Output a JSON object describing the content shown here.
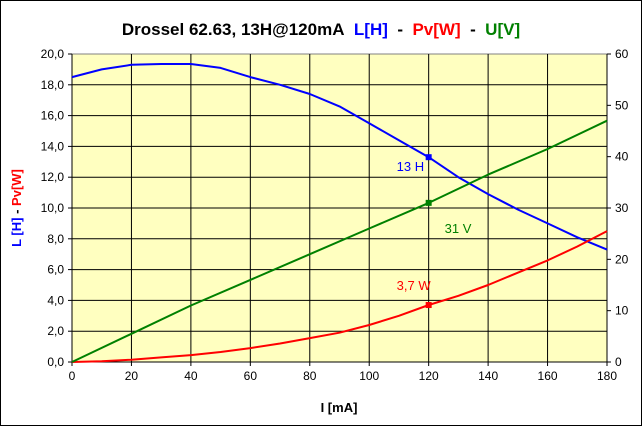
{
  "chart_data": {
    "type": "line",
    "title_parts": [
      {
        "text": "Drossel 62.63, 13H@120mA",
        "color": "#000000"
      },
      {
        "text": "L[H]",
        "color": "#0000ff"
      },
      {
        "text": "-",
        "color": "#000000"
      },
      {
        "text": "Pv[W]",
        "color": "#ff0000"
      },
      {
        "text": "-",
        "color": "#000000"
      },
      {
        "text": "U[V]",
        "color": "#008000"
      }
    ],
    "xlabel": "I [mA]",
    "ylabel_left_parts": [
      {
        "text": "L [H]",
        "color": "#0000ff"
      },
      {
        "text": " - ",
        "color": "#000000"
      },
      {
        "text": "Pv[W]",
        "color": "#ff0000"
      }
    ],
    "xlim": [
      0,
      180
    ],
    "ylim_left": [
      0,
      20
    ],
    "ylim_right": [
      0,
      60
    ],
    "x_ticks": [
      "0",
      "20",
      "40",
      "60",
      "80",
      "100",
      "120",
      "140",
      "160",
      "180"
    ],
    "y_left_ticks": [
      "0,0",
      "2,0",
      "4,0",
      "6,0",
      "8,0",
      "10,0",
      "12,0",
      "14,0",
      "16,0",
      "18,0",
      "20,0"
    ],
    "y_right_ticks": [
      "0",
      "10",
      "20",
      "30",
      "40",
      "50",
      "60"
    ],
    "grid": true,
    "plot_background": "#ffffc0",
    "series": [
      {
        "axis": "left",
        "color": "#0000ff",
        "x": [
          0,
          10,
          20,
          30,
          40,
          50,
          60,
          70,
          80,
          90,
          100,
          110,
          120,
          130,
          140,
          150,
          160,
          170,
          180
        ],
        "y": [
          18.5,
          19.0,
          19.3,
          19.35,
          19.35,
          19.1,
          18.5,
          18.0,
          17.4,
          16.6,
          15.5,
          14.4,
          13.3,
          12.0,
          10.9,
          9.9,
          9.0,
          8.1,
          7.3
        ]
      },
      {
        "axis": "left",
        "color": "#ff0000",
        "x": [
          0,
          10,
          20,
          30,
          40,
          50,
          60,
          70,
          80,
          90,
          100,
          110,
          120,
          130,
          140,
          150,
          160,
          170,
          180
        ],
        "y": [
          0.0,
          0.05,
          0.15,
          0.3,
          0.45,
          0.65,
          0.9,
          1.2,
          1.55,
          1.9,
          2.4,
          3.0,
          3.7,
          4.3,
          5.0,
          5.8,
          6.6,
          7.5,
          8.5
        ]
      },
      {
        "axis": "right",
        "color": "#008000",
        "x": [
          0,
          20,
          40,
          60,
          80,
          100,
          120,
          140,
          160,
          180
        ],
        "y": [
          0,
          5.5,
          11.0,
          16.0,
          21.0,
          26.0,
          31.0,
          36.5,
          41.5,
          47.0
        ]
      }
    ],
    "annotations": [
      {
        "text": "13 H",
        "color": "#0000ff",
        "x": 120,
        "y": 13.3,
        "axis": "left",
        "dx": -32,
        "dy": 14
      },
      {
        "text": "31 V",
        "color": "#008000",
        "x": 120,
        "y": 31,
        "axis": "right",
        "dx": 16,
        "dy": 30
      },
      {
        "text": "3,7 W",
        "color": "#ff0000",
        "x": 120,
        "y": 3.7,
        "axis": "left",
        "dx": -32,
        "dy": -15
      }
    ]
  }
}
